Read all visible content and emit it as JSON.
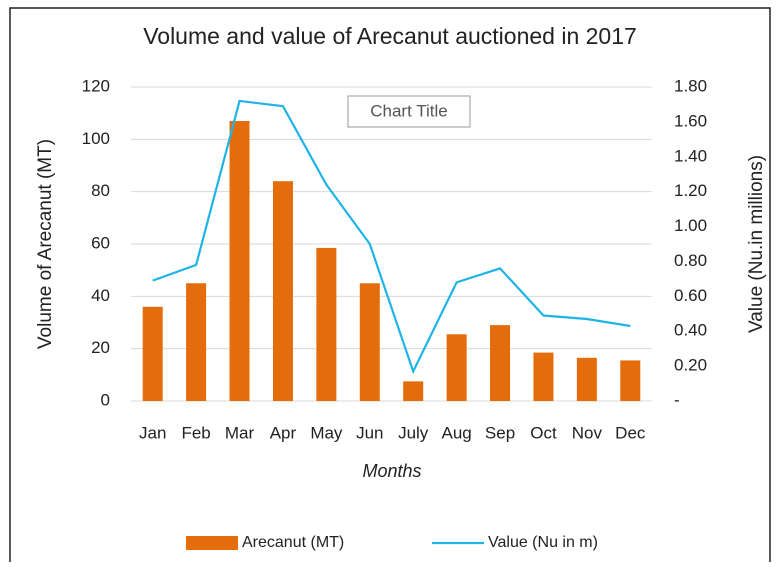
{
  "chart_data": {
    "type": "bar_line",
    "title": "Volume and value of Arecanut auctioned in 2017",
    "annotation": "Chart Title",
    "x_label": "Months",
    "y_label": "Volume of Arecanut (MT)",
    "y2_label": "Value (Nu.in millions)",
    "categories": [
      "Jan",
      "Feb",
      "Mar",
      "Apr",
      "May",
      "Jun",
      "July",
      "Aug",
      "Sep",
      "Oct",
      "Nov",
      "Dec"
    ],
    "series": [
      {
        "name": "Arecanut (MT)",
        "type": "bar",
        "color": "#e46c0a",
        "values": [
          36,
          45,
          107,
          84,
          58.5,
          45,
          7.5,
          25.5,
          29,
          18.5,
          16.5,
          15.5
        ]
      },
      {
        "name": "Value (Nu in m)",
        "type": "line",
        "axis": "y2",
        "color": "#1fb4e8",
        "values": [
          0.69,
          0.78,
          1.72,
          1.69,
          1.24,
          0.9,
          0.17,
          0.68,
          0.76,
          0.49,
          0.47,
          0.43
        ]
      }
    ],
    "ylim": [
      0,
      120
    ],
    "yticks": [
      0,
      20,
      40,
      60,
      80,
      100,
      120
    ],
    "y2lim": [
      0,
      1.8
    ],
    "y2ticks": [
      {
        "value": 0,
        "label": "-"
      },
      {
        "value": 0.2,
        "label": "0.20"
      },
      {
        "value": 0.4,
        "label": "0.40"
      },
      {
        "value": 0.6,
        "label": "0.60"
      },
      {
        "value": 0.8,
        "label": "0.80"
      },
      {
        "value": 1.0,
        "label": "1.00"
      },
      {
        "value": 1.2,
        "label": "1.20"
      },
      {
        "value": 1.4,
        "label": "1.40"
      },
      {
        "value": 1.6,
        "label": "1.60"
      },
      {
        "value": 1.8,
        "label": "1.80"
      }
    ],
    "grid": true
  }
}
